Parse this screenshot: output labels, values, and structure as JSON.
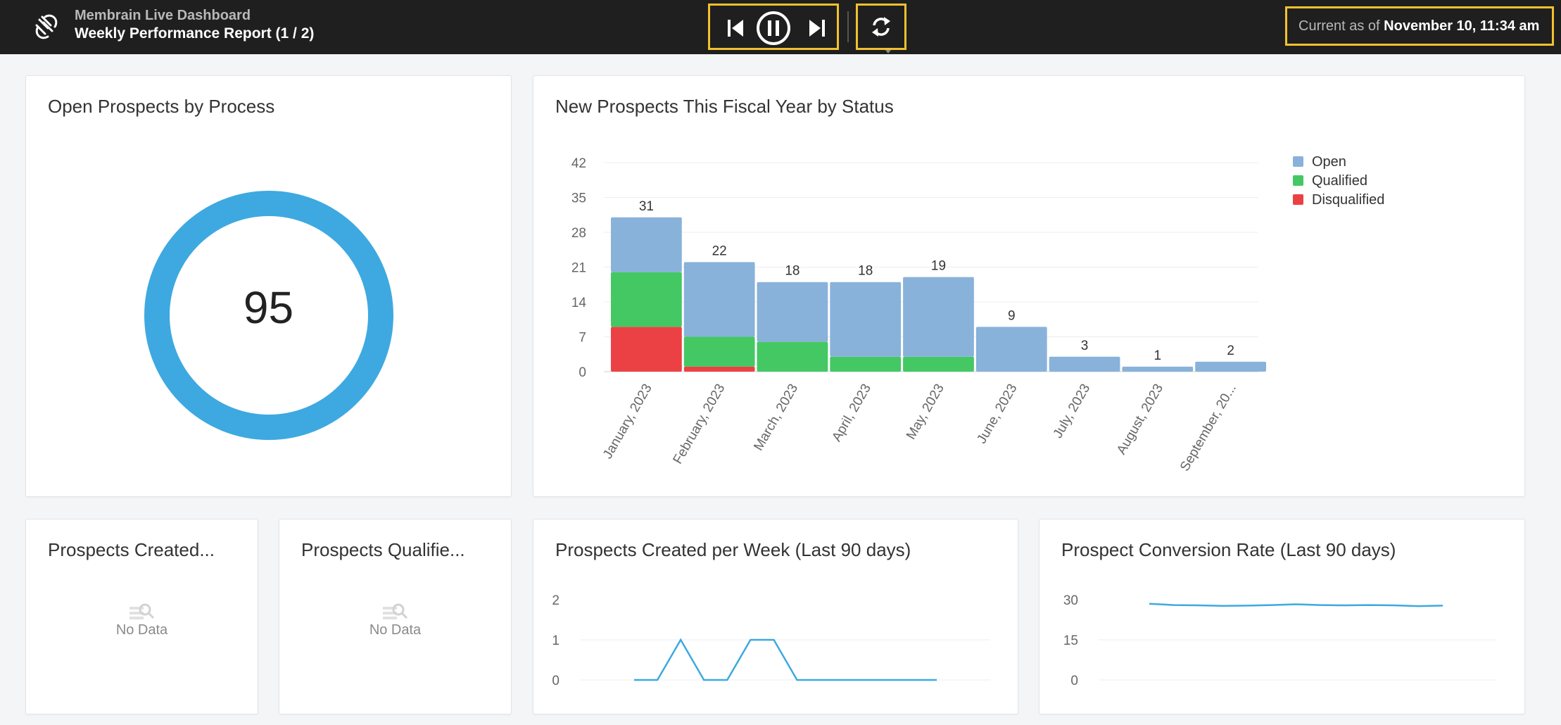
{
  "header": {
    "app_title": "Membrain Live Dashboard",
    "report_title": "Weekly Performance Report (1 / 2)",
    "as_of_prefix": "Current as of",
    "as_of_value": "November 10, 11:34 am",
    "icons": [
      "membrain-logo-icon",
      "skip-previous-icon",
      "pause-icon",
      "skip-next-icon",
      "refresh-icon"
    ],
    "highlight_color": "#f2c12e"
  },
  "panels": {
    "open_prospects": {
      "title": "Open Prospects by Process",
      "value": "95",
      "color": "#3ea9e0"
    },
    "new_prospects": {
      "title": "New Prospects This Fiscal Year by Status"
    },
    "created": {
      "title": "Prospects Created...",
      "empty_text": "No Data"
    },
    "qualified": {
      "title": "Prospects Qualifie...",
      "empty_text": "No Data"
    },
    "created_per_week": {
      "title": "Prospects Created per Week (Last 90 days)"
    },
    "conversion_rate": {
      "title": "Prospect Conversion Rate (Last 90 days)"
    }
  },
  "chart_data": [
    {
      "type": "bar",
      "stacked": true,
      "title": "New Prospects This Fiscal Year by Status",
      "categories": [
        "January, 2023",
        "February, 2023",
        "March, 2023",
        "April, 2023",
        "May, 2023",
        "June, 2023",
        "July, 2023",
        "August, 2023",
        "September, 20..."
      ],
      "series": [
        {
          "name": "Disqualified",
          "color": "#ec4144",
          "values": [
            9,
            1,
            0,
            0,
            0,
            0,
            0,
            0,
            0
          ]
        },
        {
          "name": "Qualified",
          "color": "#44c864",
          "values": [
            11,
            6,
            6,
            3,
            3,
            0,
            0,
            0,
            0
          ]
        },
        {
          "name": "Open",
          "color": "#89b2da",
          "values": [
            11,
            15,
            12,
            15,
            16,
            9,
            3,
            1,
            2
          ]
        }
      ],
      "totals": [
        31,
        22,
        18,
        18,
        19,
        9,
        3,
        1,
        2
      ],
      "yticks": [
        0,
        7,
        14,
        21,
        28,
        35,
        42
      ],
      "ylim": [
        0,
        42
      ],
      "legend": [
        "Open",
        "Qualified",
        "Disqualified"
      ],
      "legend_position": "top-right",
      "grid": true
    },
    {
      "type": "line",
      "title": "Prospects Created per Week (Last 90 days)",
      "color": "#3ea9e0",
      "yticks": [
        0,
        1,
        2
      ],
      "ylim": [
        0,
        2
      ],
      "values": [
        0,
        0,
        1,
        0,
        0,
        1,
        1,
        0,
        0,
        0,
        0,
        0,
        0,
        0
      ],
      "grid": true
    },
    {
      "type": "line",
      "title": "Prospect Conversion Rate (Last 90 days)",
      "color": "#3ea9e0",
      "yticks": [
        0,
        15,
        30
      ],
      "ylim": [
        0,
        30
      ],
      "values": [
        28.5,
        28,
        27.9,
        27.7,
        27.8,
        28,
        28.3,
        28,
        27.9,
        28,
        27.9,
        27.6,
        27.8
      ],
      "grid": true
    }
  ]
}
